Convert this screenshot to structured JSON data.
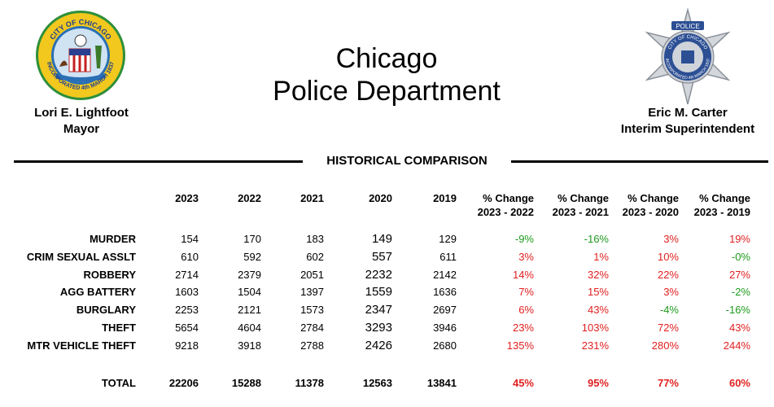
{
  "header": {
    "title_line1": "Chicago",
    "title_line2": "Police Department",
    "left_name": "Lori E. Lightfoot",
    "left_role": "Mayor",
    "right_name": "Eric M. Carter",
    "right_role": "Interim Superintendent",
    "seal_text": "CITY OF CHICAGO",
    "seal_text2": "INCORPORATED 4th MARCH 1837",
    "star_text": "POLICE",
    "star_text2": "CITY OF CHICAGO",
    "star_text3": "INCORPORATED 4th MARCH 1837"
  },
  "section_title": "HISTORICAL COMPARISON",
  "columns": [
    "2023",
    "2022",
    "2021",
    "2020",
    "2019"
  ],
  "change_columns": [
    {
      "l1": "% Change",
      "l2": "2023 - 2022"
    },
    {
      "l1": "% Change",
      "l2": "2023 - 2021"
    },
    {
      "l1": "% Change",
      "l2": "2023 - 2020"
    },
    {
      "l1": "% Change",
      "l2": "2023 - 2019"
    }
  ],
  "rows": [
    {
      "label": "MURDER",
      "v": [
        "154",
        "170",
        "183",
        "149",
        "129"
      ],
      "c": [
        "-9%",
        "-16%",
        "3%",
        "19%"
      ]
    },
    {
      "label": "CRIM SEXUAL ASSLT",
      "v": [
        "610",
        "592",
        "602",
        "557",
        "611"
      ],
      "c": [
        "3%",
        "1%",
        "10%",
        "-0%"
      ]
    },
    {
      "label": "ROBBERY",
      "v": [
        "2714",
        "2379",
        "2051",
        "2232",
        "2142"
      ],
      "c": [
        "14%",
        "32%",
        "22%",
        "27%"
      ]
    },
    {
      "label": "AGG BATTERY",
      "v": [
        "1603",
        "1504",
        "1397",
        "1559",
        "1636"
      ],
      "c": [
        "7%",
        "15%",
        "3%",
        "-2%"
      ]
    },
    {
      "label": "BURGLARY",
      "v": [
        "2253",
        "2121",
        "1573",
        "2347",
        "2697"
      ],
      "c": [
        "6%",
        "43%",
        "-4%",
        "-16%"
      ]
    },
    {
      "label": "THEFT",
      "v": [
        "5654",
        "4604",
        "2784",
        "3293",
        "3946"
      ],
      "c": [
        "23%",
        "103%",
        "72%",
        "43%"
      ]
    },
    {
      "label": "MTR VEHICLE THEFT",
      "v": [
        "9218",
        "3918",
        "2788",
        "2426",
        "2680"
      ],
      "c": [
        "135%",
        "231%",
        "280%",
        "244%"
      ]
    }
  ],
  "total": {
    "label": "TOTAL",
    "v": [
      "22206",
      "15288",
      "11378",
      "12563",
      "13841"
    ],
    "c": [
      "45%",
      "95%",
      "77%",
      "60%"
    ]
  },
  "colors": {
    "increase": "#e02020",
    "decrease": "#1e9a1e"
  }
}
